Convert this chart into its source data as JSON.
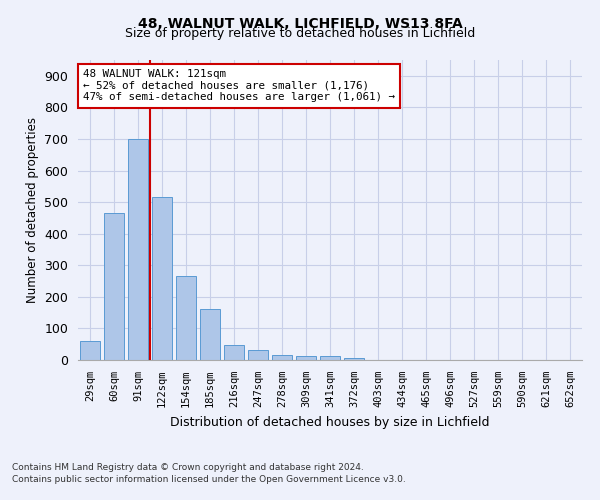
{
  "title1": "48, WALNUT WALK, LICHFIELD, WS13 8FA",
  "title2": "Size of property relative to detached houses in Lichfield",
  "xlabel": "Distribution of detached houses by size in Lichfield",
  "ylabel": "Number of detached properties",
  "categories": [
    "29sqm",
    "60sqm",
    "91sqm",
    "122sqm",
    "154sqm",
    "185sqm",
    "216sqm",
    "247sqm",
    "278sqm",
    "309sqm",
    "341sqm",
    "372sqm",
    "403sqm",
    "434sqm",
    "465sqm",
    "496sqm",
    "527sqm",
    "559sqm",
    "590sqm",
    "621sqm",
    "652sqm"
  ],
  "values": [
    60,
    465,
    700,
    515,
    265,
    160,
    47,
    33,
    17,
    14,
    14,
    7,
    0,
    0,
    0,
    0,
    0,
    0,
    0,
    0,
    0
  ],
  "bar_color": "#aec6e8",
  "bar_edge_color": "#5a9ad4",
  "vline_x_index": 2,
  "vline_color": "#cc0000",
  "annotation_box_text": "48 WALNUT WALK: 121sqm\n← 52% of detached houses are smaller (1,176)\n47% of semi-detached houses are larger (1,061) →",
  "ylim": [
    0,
    950
  ],
  "yticks": [
    0,
    100,
    200,
    300,
    400,
    500,
    600,
    700,
    800,
    900
  ],
  "footer1": "Contains HM Land Registry data © Crown copyright and database right 2024.",
  "footer2": "Contains public sector information licensed under the Open Government Licence v3.0.",
  "bg_color": "#eef1fb",
  "plot_bg_color": "#eef1fb",
  "grid_color": "#c8cfe8"
}
